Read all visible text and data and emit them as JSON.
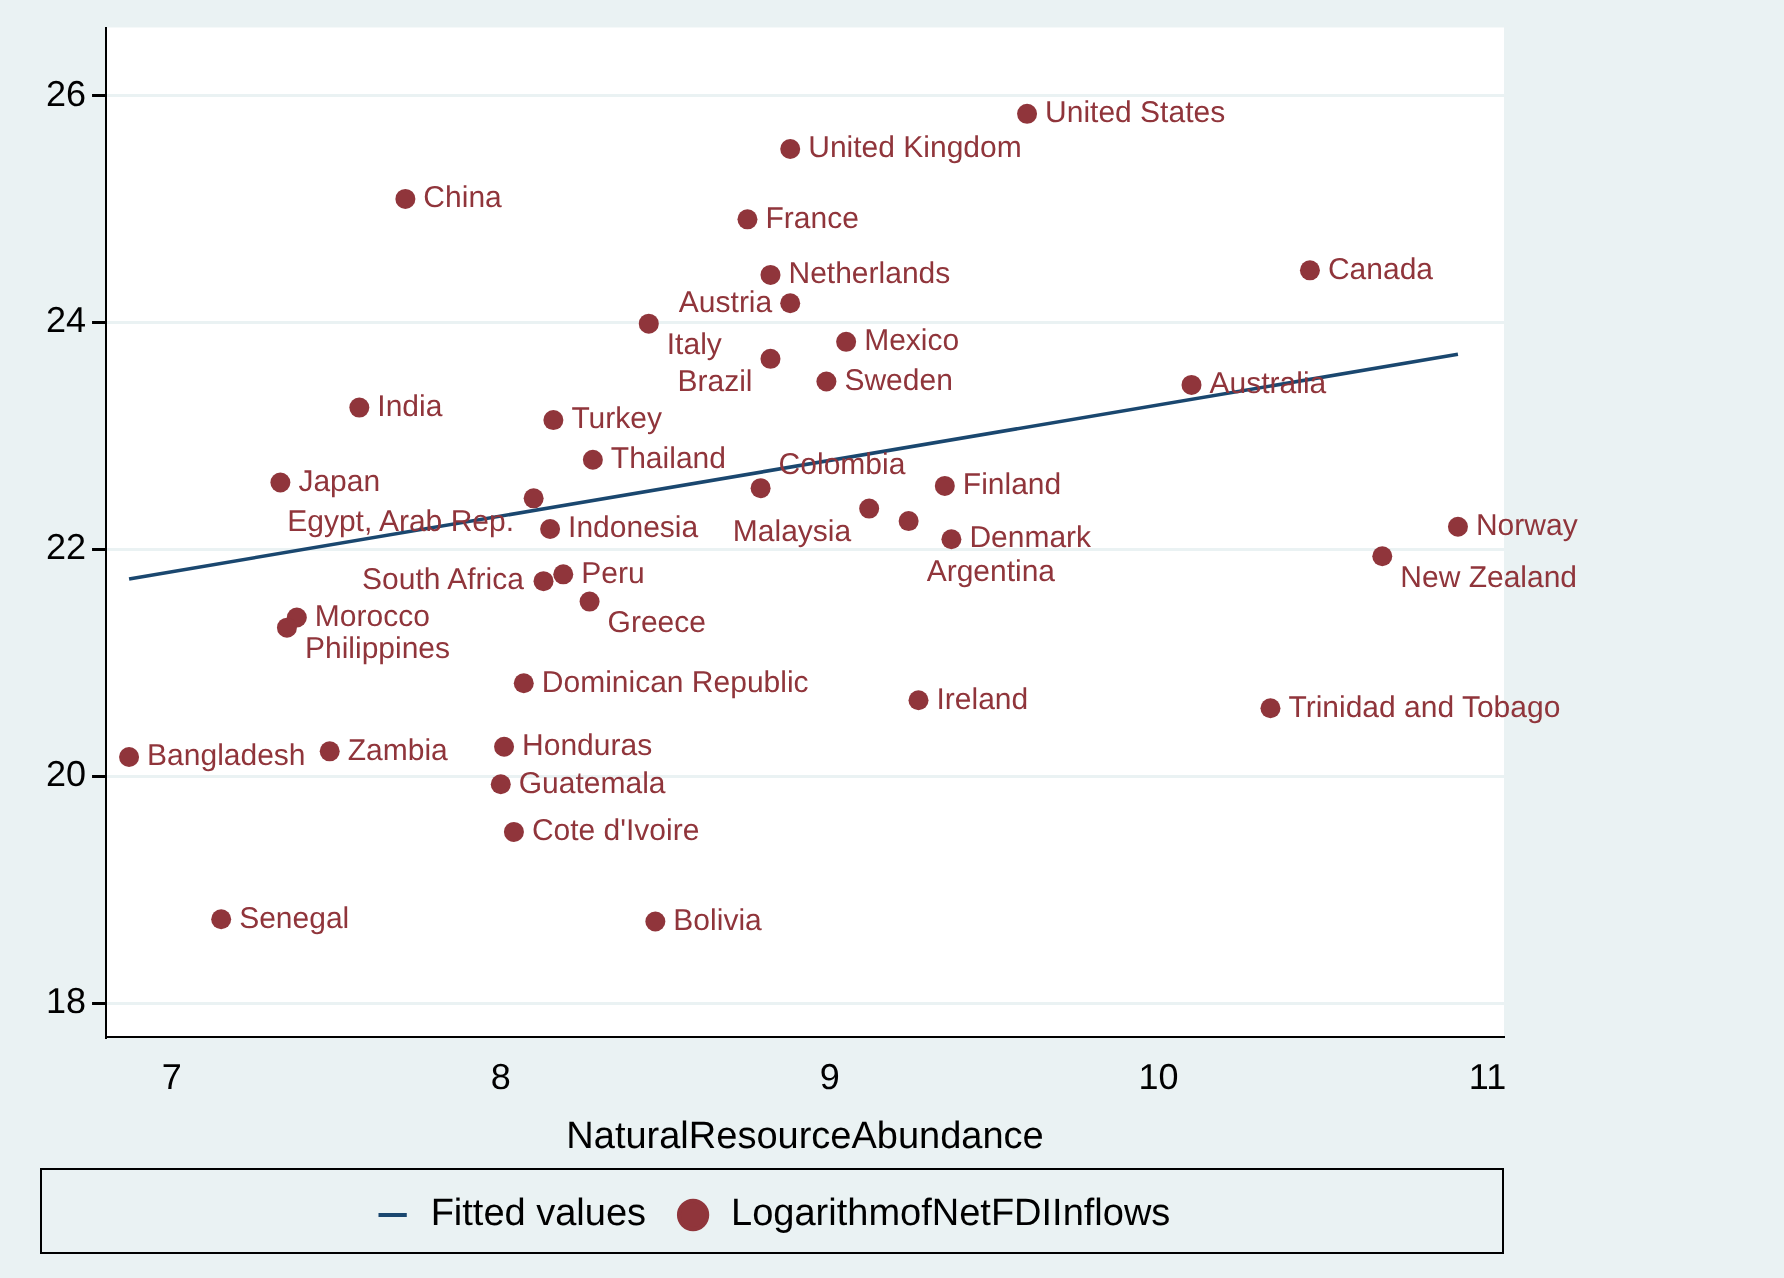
{
  "chart_data": {
    "type": "scatter",
    "xlabel": "NaturalResourceAbundance",
    "xlim": [
      6.8,
      11.05
    ],
    "xticks": [
      7,
      8,
      9,
      10,
      11
    ],
    "ylim": [
      17.7,
      26.6
    ],
    "yticks": [
      18,
      20,
      22,
      24,
      26
    ],
    "grid": "y",
    "legend": "bottom",
    "marker": "circle",
    "series": [
      {
        "name": "Fitted values",
        "type": "line",
        "color": "#1a476f",
        "line_style": "solid",
        "marker": "none",
        "x": [
          6.87,
          10.91
        ],
        "values": [
          21.74,
          23.72
        ]
      },
      {
        "name": "LogarithmofNetFDIInflows",
        "color": "#90353b",
        "x": [
          9.6,
          8.88,
          7.71,
          8.75,
          8.82,
          8.88,
          10.46,
          8.45,
          9.05,
          8.82,
          8.99,
          10.1,
          7.57,
          8.16,
          8.28,
          7.33,
          8.1,
          8.79,
          9.35,
          9.12,
          9.24,
          9.37,
          8.15,
          10.91,
          10.68,
          8.19,
          8.13,
          8.27,
          7.38,
          7.35,
          8.07,
          9.27,
          10.34,
          6.87,
          7.48,
          8.01,
          8.0,
          8.04,
          7.15,
          8.47
        ],
        "values": [
          25.84,
          25.53,
          25.09,
          24.91,
          24.42,
          24.17,
          24.46,
          23.99,
          23.83,
          23.68,
          23.48,
          23.45,
          23.25,
          23.14,
          22.79,
          22.59,
          22.45,
          22.54,
          22.56,
          22.36,
          22.25,
          22.09,
          22.18,
          22.2,
          21.94,
          21.78,
          21.72,
          21.54,
          21.4,
          21.31,
          20.82,
          20.67,
          20.6,
          20.17,
          20.22,
          20.26,
          19.93,
          19.51,
          18.74,
          18.72
        ],
        "value_labels": [
          "United States",
          "United Kingdom",
          "China",
          "France",
          "Netherlands",
          "Austria",
          "Canada",
          "Italy",
          "Mexico",
          "Brazil",
          "Sweden",
          "Australia",
          "India",
          "Turkey",
          "Thailand",
          "Japan",
          "Egypt, Arab Rep.",
          "Colombia",
          "Finland",
          "Malaysia",
          "Argentina",
          "Denmark",
          "Indonesia",
          "Norway",
          "New Zealand",
          "Peru",
          "South Africa",
          "Greece",
          "Morocco",
          "Philippines",
          "Dominican Republic",
          "Ireland",
          "Trinidad and Tobago",
          "Bangladesh",
          "Zambia",
          "Honduras",
          "Guatemala",
          "Cote d'Ivoire",
          "Senegal",
          "Bolivia"
        ]
      }
    ]
  }
}
